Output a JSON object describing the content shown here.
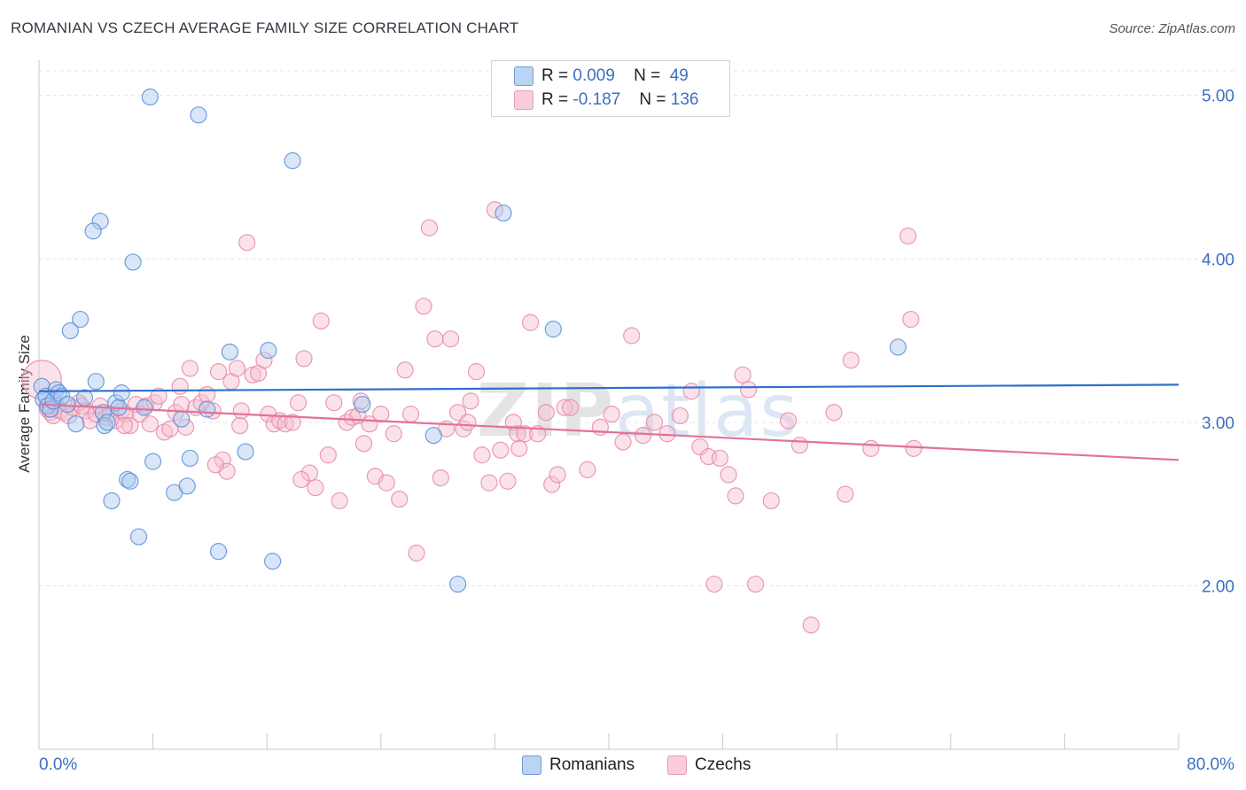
{
  "title": "ROMANIAN VS CZECH AVERAGE FAMILY SIZE CORRELATION CHART",
  "source": "Source: ZipAtlas.com",
  "watermark": "ZIPatlas",
  "colors": {
    "romanians_fill": "#a9c8ef",
    "romanians_stroke": "#5b8fd6",
    "romanians_line": "#2f6fce",
    "czechs_fill": "#f7bfd1",
    "czechs_stroke": "#e58aa8",
    "czechs_line": "#e3719a",
    "axis_text": "#3a6fc4",
    "grid": "#e3e3e3"
  },
  "legend_top": {
    "rows": [
      {
        "r_label": "R =",
        "r_value": "0.009",
        "n_label": "N =",
        "n_value": "49"
      },
      {
        "r_label": "R =",
        "r_value": "-0.187",
        "n_label": "N =",
        "n_value": "136"
      }
    ]
  },
  "legend_bottom": [
    "Romanians",
    "Czechs"
  ],
  "chart_data": {
    "type": "scatter",
    "title": "ROMANIAN VS CZECH AVERAGE FAMILY SIZE CORRELATION CHART",
    "xlabel": "",
    "ylabel": "Average Family Size",
    "xlim": [
      0,
      80
    ],
    "ylim": [
      1.0,
      5.15
    ],
    "x_tick_labels": [
      "0.0%",
      "80.0%"
    ],
    "y_ticks": [
      2.0,
      3.0,
      4.0,
      5.0
    ],
    "y_tick_labels": [
      "2.00",
      "3.00",
      "4.00",
      "5.00"
    ],
    "grid": true,
    "legend_position": "top-center",
    "series": [
      {
        "name": "Romanians",
        "r": 0.009,
        "n": 49,
        "trend": {
          "x": [
            0,
            80
          ],
          "y": [
            3.19,
            3.23
          ]
        },
        "points": [
          [
            0.2,
            3.22
          ],
          [
            0.3,
            3.14
          ],
          [
            0.5,
            3.16
          ],
          [
            0.6,
            3.1
          ],
          [
            0.8,
            3.08
          ],
          [
            1.0,
            3.13
          ],
          [
            1.2,
            3.2
          ],
          [
            1.4,
            3.18
          ],
          [
            1.6,
            3.16
          ],
          [
            2.0,
            3.11
          ],
          [
            2.6,
            2.99
          ],
          [
            3.2,
            3.15
          ],
          [
            4.0,
            3.25
          ],
          [
            4.3,
            4.23
          ],
          [
            4.5,
            3.06
          ],
          [
            4.6,
            2.98
          ],
          [
            4.8,
            3.0
          ],
          [
            5.1,
            2.52
          ],
          [
            5.4,
            3.12
          ],
          [
            5.6,
            3.09
          ],
          [
            5.8,
            3.18
          ],
          [
            6.2,
            2.65
          ],
          [
            6.4,
            2.64
          ],
          [
            6.6,
            3.98
          ],
          [
            7.0,
            2.3
          ],
          [
            7.4,
            3.09
          ],
          [
            7.8,
            4.99
          ],
          [
            8.0,
            2.76
          ],
          [
            9.5,
            2.57
          ],
          [
            10.0,
            3.02
          ],
          [
            10.6,
            2.78
          ],
          [
            10.4,
            2.61
          ],
          [
            11.2,
            4.88
          ],
          [
            11.8,
            3.08
          ],
          [
            12.6,
            2.21
          ],
          [
            13.4,
            3.43
          ],
          [
            14.5,
            2.82
          ],
          [
            16.4,
            2.15
          ],
          [
            17.8,
            4.6
          ],
          [
            22.7,
            3.11
          ],
          [
            27.7,
            2.92
          ],
          [
            29.4,
            2.01
          ],
          [
            32.6,
            4.28
          ],
          [
            36.1,
            3.57
          ],
          [
            60.3,
            3.46
          ],
          [
            2.9,
            3.63
          ],
          [
            2.2,
            3.56
          ],
          [
            3.8,
            4.17
          ],
          [
            16.1,
            3.44
          ]
        ]
      },
      {
        "name": "Czechs",
        "r": -0.187,
        "n": 136,
        "trend": {
          "x": [
            0,
            80
          ],
          "y": [
            3.11,
            2.77
          ]
        },
        "points": [
          [
            0.2,
            3.26
          ],
          [
            0.6,
            3.08
          ],
          [
            0.8,
            3.06
          ],
          [
            1.0,
            3.04
          ],
          [
            1.2,
            3.1
          ],
          [
            1.5,
            3.07
          ],
          [
            1.8,
            3.06
          ],
          [
            2.1,
            3.04
          ],
          [
            2.4,
            3.09
          ],
          [
            2.8,
            3.12
          ],
          [
            3.0,
            3.1
          ],
          [
            3.3,
            3.07
          ],
          [
            3.6,
            3.01
          ],
          [
            4.0,
            3.05
          ],
          [
            4.3,
            3.1
          ],
          [
            4.7,
            3.03
          ],
          [
            5.0,
            3.05
          ],
          [
            5.4,
            3.01
          ],
          [
            5.8,
            3.07
          ],
          [
            6.1,
            3.05
          ],
          [
            6.4,
            2.98
          ],
          [
            6.8,
            3.11
          ],
          [
            7.1,
            3.05
          ],
          [
            7.5,
            3.1
          ],
          [
            7.8,
            2.99
          ],
          [
            8.1,
            3.12
          ],
          [
            8.4,
            3.16
          ],
          [
            8.8,
            2.94
          ],
          [
            9.2,
            2.96
          ],
          [
            9.6,
            3.06
          ],
          [
            10.0,
            3.11
          ],
          [
            10.3,
            2.97
          ],
          [
            10.6,
            3.33
          ],
          [
            11.0,
            3.09
          ],
          [
            11.4,
            3.12
          ],
          [
            11.8,
            3.17
          ],
          [
            12.2,
            3.07
          ],
          [
            12.6,
            3.31
          ],
          [
            12.9,
            2.77
          ],
          [
            13.2,
            2.7
          ],
          [
            13.5,
            3.25
          ],
          [
            13.9,
            3.33
          ],
          [
            14.2,
            3.07
          ],
          [
            14.6,
            4.1
          ],
          [
            15.0,
            3.29
          ],
          [
            15.4,
            3.3
          ],
          [
            15.8,
            3.38
          ],
          [
            16.1,
            3.05
          ],
          [
            16.5,
            2.99
          ],
          [
            16.9,
            3.01
          ],
          [
            17.3,
            2.99
          ],
          [
            17.8,
            3.0
          ],
          [
            18.2,
            3.12
          ],
          [
            18.6,
            3.39
          ],
          [
            19.0,
            2.69
          ],
          [
            19.4,
            2.6
          ],
          [
            19.8,
            3.62
          ],
          [
            20.3,
            2.8
          ],
          [
            20.7,
            3.12
          ],
          [
            21.1,
            2.52
          ],
          [
            21.6,
            3.0
          ],
          [
            22.0,
            3.03
          ],
          [
            22.4,
            3.04
          ],
          [
            22.8,
            2.87
          ],
          [
            23.2,
            2.99
          ],
          [
            23.6,
            2.67
          ],
          [
            24.0,
            3.05
          ],
          [
            24.4,
            2.63
          ],
          [
            24.9,
            2.93
          ],
          [
            25.3,
            2.53
          ],
          [
            25.7,
            3.32
          ],
          [
            26.1,
            3.05
          ],
          [
            26.5,
            2.2
          ],
          [
            27.0,
            3.71
          ],
          [
            27.4,
            4.19
          ],
          [
            27.8,
            3.51
          ],
          [
            28.2,
            2.66
          ],
          [
            28.6,
            2.96
          ],
          [
            28.9,
            3.51
          ],
          [
            29.4,
            3.06
          ],
          [
            29.8,
            2.96
          ],
          [
            30.3,
            3.13
          ],
          [
            30.7,
            3.31
          ],
          [
            31.1,
            2.8
          ],
          [
            31.6,
            2.63
          ],
          [
            32.0,
            4.3
          ],
          [
            32.4,
            2.83
          ],
          [
            32.9,
            2.64
          ],
          [
            33.3,
            3.0
          ],
          [
            33.6,
            2.93
          ],
          [
            34.1,
            2.93
          ],
          [
            34.5,
            3.61
          ],
          [
            35.0,
            2.93
          ],
          [
            35.6,
            3.06
          ],
          [
            36.0,
            2.62
          ],
          [
            36.4,
            2.68
          ],
          [
            36.9,
            3.09
          ],
          [
            37.3,
            3.09
          ],
          [
            38.5,
            2.71
          ],
          [
            39.4,
            2.97
          ],
          [
            40.2,
            3.05
          ],
          [
            41.0,
            2.88
          ],
          [
            41.6,
            3.53
          ],
          [
            42.4,
            2.92
          ],
          [
            43.2,
            3.0
          ],
          [
            44.1,
            2.93
          ],
          [
            45.0,
            3.04
          ],
          [
            45.8,
            3.19
          ],
          [
            46.4,
            2.85
          ],
          [
            47.0,
            2.79
          ],
          [
            47.4,
            2.01
          ],
          [
            47.8,
            2.78
          ],
          [
            48.4,
            2.68
          ],
          [
            48.9,
            2.55
          ],
          [
            49.4,
            3.29
          ],
          [
            49.8,
            3.2
          ],
          [
            50.3,
            2.01
          ],
          [
            51.4,
            2.52
          ],
          [
            52.6,
            3.01
          ],
          [
            53.4,
            2.86
          ],
          [
            54.2,
            1.76
          ],
          [
            56.6,
            2.56
          ],
          [
            57.0,
            3.38
          ],
          [
            58.4,
            2.84
          ],
          [
            61.0,
            4.14
          ],
          [
            61.2,
            3.63
          ],
          [
            61.4,
            2.84
          ],
          [
            55.8,
            3.06
          ],
          [
            33.7,
            2.84
          ],
          [
            30.1,
            3.0
          ],
          [
            22.6,
            3.13
          ],
          [
            18.4,
            2.65
          ],
          [
            14.1,
            2.98
          ],
          [
            12.4,
            2.74
          ],
          [
            9.9,
            3.22
          ],
          [
            6.0,
            2.98
          ]
        ]
      }
    ]
  }
}
